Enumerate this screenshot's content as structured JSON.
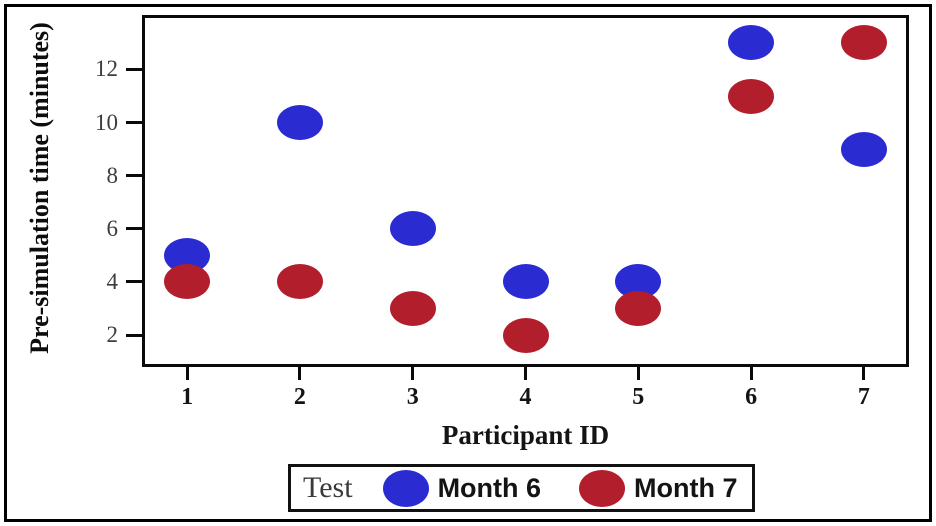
{
  "chart_data": {
    "type": "scatter",
    "title": "",
    "xlabel": "Participant ID",
    "ylabel": "Pre-simulation time (minutes)",
    "legend_title": "Test",
    "legend_position": "bottom",
    "grid": false,
    "categories": [
      1,
      2,
      3,
      4,
      5,
      6,
      7
    ],
    "y_ticks": [
      2,
      4,
      6,
      8,
      10,
      12
    ],
    "xlim": [
      0.6,
      7.4
    ],
    "ylim": [
      0.8,
      14.05
    ],
    "marker": "ellipse",
    "series": [
      {
        "name": "Month 6",
        "color": "#2b2bd2",
        "values": [
          5,
          10,
          6,
          4,
          4,
          13,
          9
        ]
      },
      {
        "name": "Month 7",
        "color": "#b21e2b",
        "values": [
          4,
          4,
          3,
          2,
          3,
          11,
          13
        ]
      }
    ]
  }
}
